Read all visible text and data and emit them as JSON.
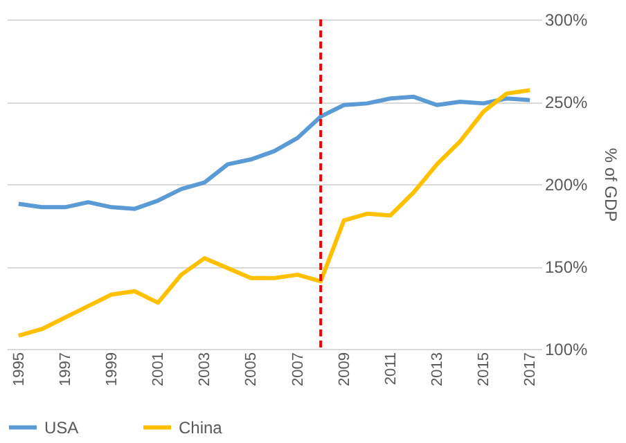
{
  "chart_data": {
    "type": "line",
    "ylabel": "% of GDP",
    "x": [
      1995,
      1996,
      1997,
      1998,
      1999,
      2000,
      2001,
      2002,
      2003,
      2004,
      2005,
      2006,
      2007,
      2008,
      2009,
      2010,
      2011,
      2012,
      2013,
      2014,
      2015,
      2016,
      2017
    ],
    "series": [
      {
        "name": "USA",
        "color": "#5b9bd5",
        "values": [
          188,
          186,
          186,
          189,
          186,
          185,
          190,
          197,
          201,
          212,
          215,
          220,
          228,
          241,
          248,
          249,
          252,
          253,
          248,
          250,
          249,
          252,
          251
        ]
      },
      {
        "name": "China",
        "color": "#ffc000",
        "values": [
          108,
          112,
          119,
          126,
          133,
          135,
          128,
          145,
          155,
          149,
          143,
          143,
          145,
          141,
          178,
          182,
          181,
          195,
          212,
          226,
          244,
          255,
          257
        ]
      }
    ],
    "xlim": [
      1994.5,
      2017.5
    ],
    "xticks": [
      1995,
      1997,
      1999,
      2001,
      2003,
      2005,
      2007,
      2009,
      2011,
      2013,
      2015,
      2017
    ],
    "ylim": [
      100,
      300
    ],
    "yticks": [
      {
        "value": 100,
        "label": "100%"
      },
      {
        "value": 150,
        "label": "150%"
      },
      {
        "value": 200,
        "label": "200%"
      },
      {
        "value": 250,
        "label": "250%"
      },
      {
        "value": 300,
        "label": "300%"
      }
    ],
    "grid": "y",
    "legend": "bottom",
    "marker": "none",
    "line_style": "solid",
    "ref_lines": [
      {
        "axis": "x",
        "value": 2008,
        "color": "#ff0000",
        "line_style": "dashed"
      }
    ]
  }
}
